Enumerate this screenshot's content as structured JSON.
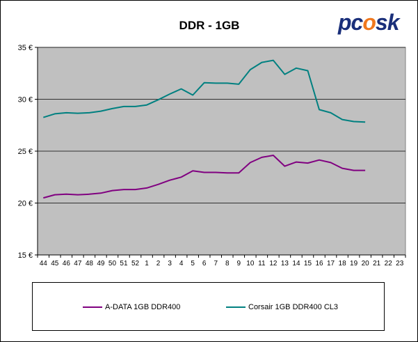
{
  "logo": {
    "text_left": "pc",
    "text_mid": "o",
    "text_right": "sk"
  },
  "chart_data": {
    "type": "line",
    "title": "DDR - 1GB",
    "categories": [
      "44",
      "45",
      "46",
      "47",
      "48",
      "49",
      "50",
      "51",
      "52",
      "1",
      "2",
      "3",
      "4",
      "5",
      "6",
      "7",
      "8",
      "9",
      "10",
      "11",
      "12",
      "13",
      "14",
      "15",
      "16",
      "17",
      "18",
      "19",
      "20",
      "21",
      "22",
      "23"
    ],
    "ylim": [
      15,
      35
    ],
    "yticks": [
      15,
      20,
      25,
      30,
      35
    ],
    "ytick_labels": [
      "15 €",
      "20 €",
      "25 €",
      "30 €",
      "35 €"
    ],
    "grid": true,
    "legend_position": "bottom",
    "background": "#c0c0c0",
    "series": [
      {
        "name": "A-DATA 1GB DDR400",
        "color": "#800080",
        "values": [
          20.5,
          20.8,
          20.85,
          20.8,
          20.85,
          20.95,
          21.2,
          21.3,
          21.3,
          21.45,
          21.8,
          22.2,
          22.5,
          23.1,
          22.95,
          22.95,
          22.9,
          22.9,
          23.9,
          24.4,
          24.6,
          23.55,
          23.95,
          23.85,
          24.15,
          23.9,
          23.35,
          23.15,
          23.15,
          null,
          null,
          null
        ]
      },
      {
        "name": "Corsair 1GB DDR400 CL3",
        "color": "#008080",
        "values": [
          28.25,
          28.6,
          28.7,
          28.65,
          28.7,
          28.85,
          29.1,
          29.3,
          29.3,
          29.45,
          29.95,
          30.5,
          31.0,
          30.4,
          31.6,
          31.55,
          31.55,
          31.45,
          32.85,
          33.55,
          33.75,
          32.4,
          33.0,
          32.75,
          29.0,
          28.7,
          28.05,
          27.85,
          27.8,
          null,
          null,
          null
        ]
      }
    ]
  }
}
